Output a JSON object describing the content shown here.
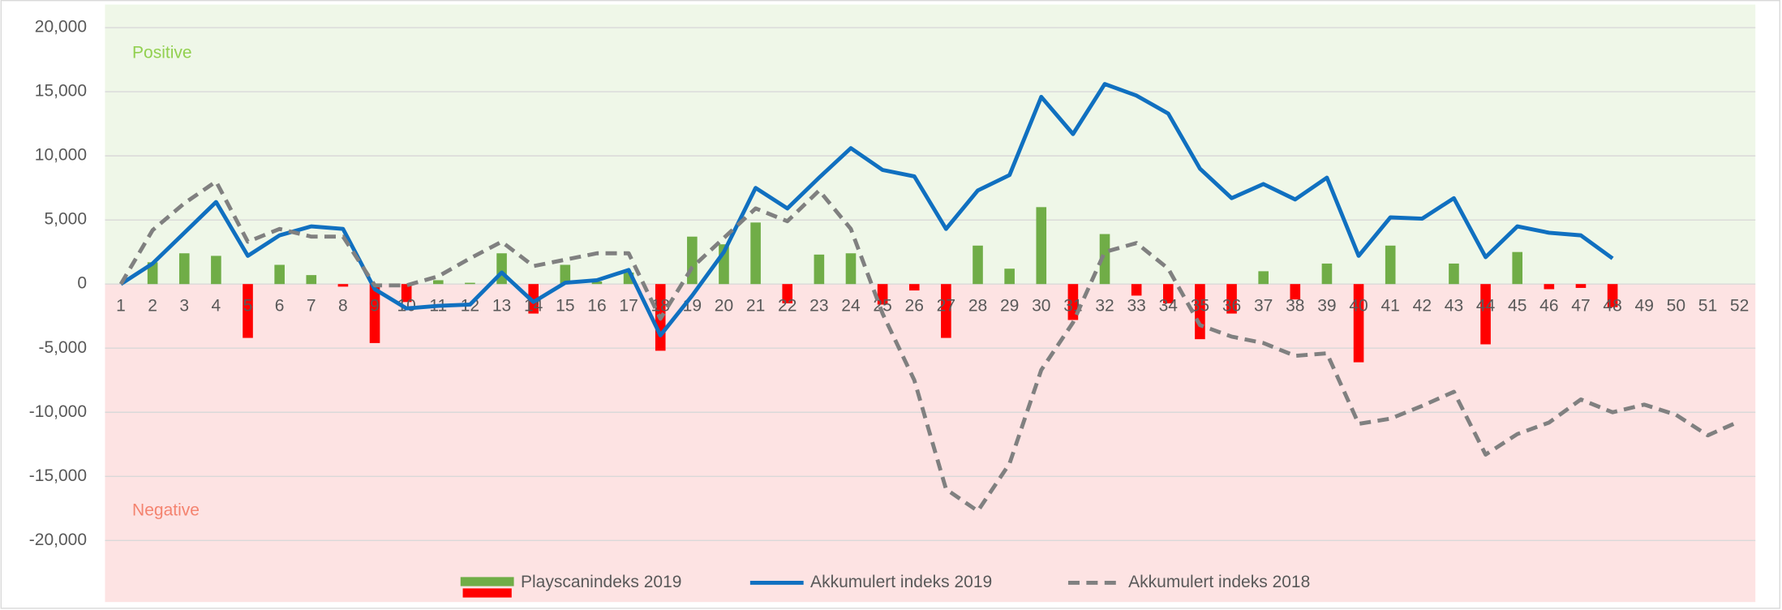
{
  "chart_data": {
    "type": "bar_line",
    "zone_labels": {
      "positive": "Positive",
      "negative": "Negative"
    },
    "zone_colors": {
      "positive": "#eff7e8",
      "negative": "#fde3e3",
      "positive_text": "#92d050",
      "negative_text": "#f4836f"
    },
    "categories": [
      "1",
      "2",
      "3",
      "4",
      "5",
      "6",
      "7",
      "8",
      "9",
      "10",
      "11",
      "12",
      "13",
      "14",
      "15",
      "16",
      "17",
      "18",
      "19",
      "20",
      "21",
      "22",
      "23",
      "24",
      "25",
      "26",
      "27",
      "28",
      "29",
      "30",
      "31",
      "32",
      "33",
      "34",
      "35",
      "36",
      "37",
      "38",
      "39",
      "40",
      "41",
      "42",
      "43",
      "44",
      "45",
      "46",
      "47",
      "48",
      "49",
      "50",
      "51",
      "52"
    ],
    "series": [
      {
        "name": "Playscanindeks 2019",
        "kind": "bar",
        "color": "#70ad47",
        "negative_color": "#ff0000",
        "values": [
          0,
          1700,
          2400,
          2200,
          -4200,
          1500,
          700,
          -200,
          -4600,
          -1400,
          300,
          100,
          2400,
          -2300,
          1500,
          200,
          900,
          -5200,
          3700,
          3100,
          4800,
          -1500,
          2300,
          2400,
          -1600,
          -500,
          -4200,
          3000,
          1200,
          6000,
          -2800,
          3900,
          -900,
          -1500,
          -4300,
          -2300,
          1000,
          -1200,
          1600,
          -6100,
          3000,
          0,
          1600,
          -4700,
          2500,
          -400,
          -300,
          -1800,
          null,
          null,
          null,
          null
        ]
      },
      {
        "name": "Akkumulert indeks 2019",
        "kind": "line",
        "color": "#1070c0",
        "dash": false,
        "values": [
          0,
          1600,
          4000,
          6400,
          2200,
          3800,
          4500,
          4300,
          -400,
          -1900,
          -1700,
          -1600,
          900,
          -1400,
          100,
          300,
          1100,
          -4000,
          -900,
          2500,
          7500,
          5900,
          8300,
          10600,
          8900,
          8400,
          4300,
          7300,
          8500,
          14600,
          11700,
          15600,
          14700,
          13300,
          9000,
          6700,
          7800,
          6600,
          8300,
          2200,
          5200,
          5100,
          6700,
          2100,
          4500,
          4000,
          3800,
          2000,
          null,
          null,
          null,
          null
        ]
      },
      {
        "name": "Akkumulert indeks 2018",
        "kind": "line",
        "color": "#808080",
        "dash": true,
        "values": [
          0,
          4200,
          6300,
          8000,
          3300,
          4300,
          3700,
          3700,
          -100,
          -100,
          600,
          2000,
          3300,
          1400,
          1900,
          2400,
          2400,
          -2700,
          1300,
          3600,
          5900,
          4900,
          7300,
          4300,
          -2300,
          -7500,
          -16000,
          -17700,
          -14000,
          -6700,
          -3000,
          2500,
          3200,
          1200,
          -3200,
          -4100,
          -4600,
          -5600,
          -5400,
          -10900,
          -10500,
          -9500,
          -8400,
          -13300,
          -11700,
          -10800,
          -9000,
          -10000,
          -9400,
          -10200,
          -11800,
          -10700
        ]
      }
    ],
    "ylim": [
      -24800,
      21800
    ],
    "yticks": [
      {
        "value": -20000,
        "label": "-20,000"
      },
      {
        "value": -15000,
        "label": "-15,000"
      },
      {
        "value": -10000,
        "label": "-10,000"
      },
      {
        "value": -5000,
        "label": "-5,000"
      },
      0,
      {
        "value": 5000,
        "label": "5,000"
      },
      {
        "value": 10000,
        "label": "10,000"
      },
      {
        "value": 15000,
        "label": "15,000"
      },
      {
        "value": 20000,
        "label": "20,000"
      }
    ],
    "grid": true,
    "legend": "bottom"
  }
}
